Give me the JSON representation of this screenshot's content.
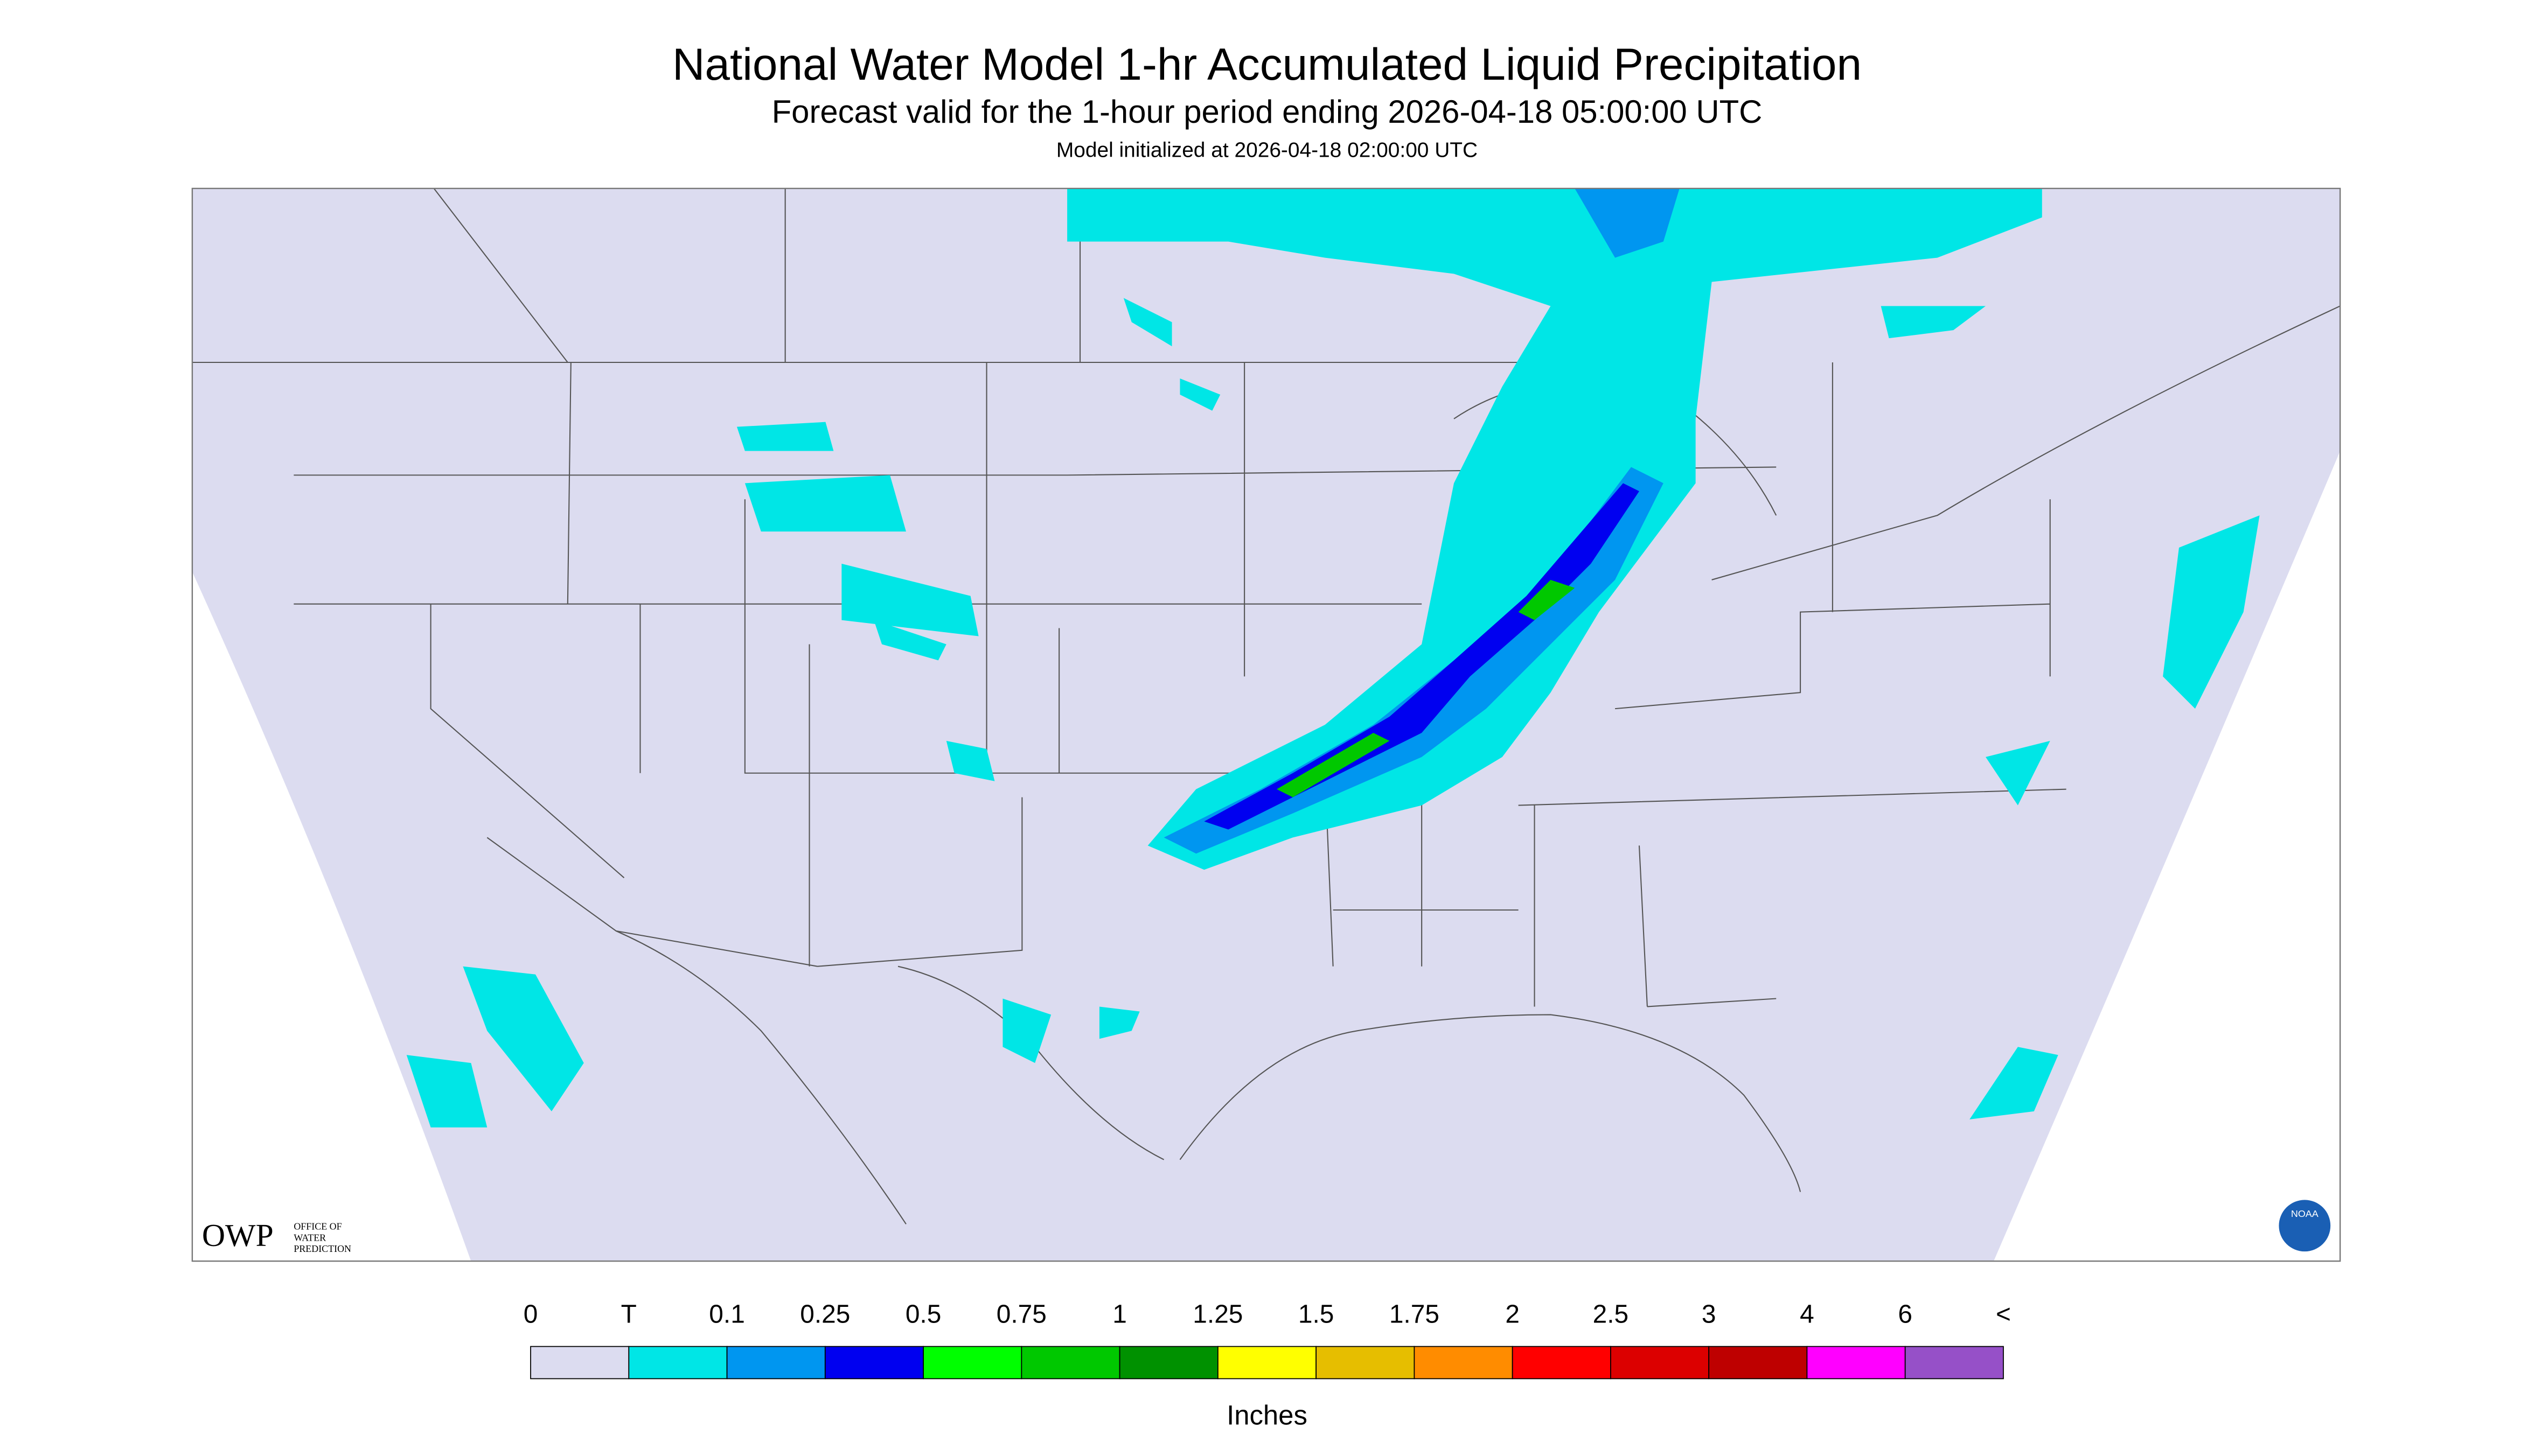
{
  "header": {
    "title": "National Water Model 1-hr Accumulated Liquid Precipitation",
    "subtitle": "Forecast valid for the 1-hour period ending 2026-04-18 05:00:00 UTC",
    "init": "Model initialized at 2026-04-18 02:00:00 UTC"
  },
  "logos": {
    "owp": "OWP",
    "owp_text": [
      "OFFICE OF",
      "WATER",
      "PREDICTION"
    ],
    "noaa": "NOAA"
  },
  "legend": {
    "labels": [
      "0",
      "T",
      "0.1",
      "0.25",
      "0.5",
      "0.75",
      "1",
      "1.25",
      "1.5",
      "1.75",
      "2",
      "2.5",
      "3",
      "4",
      "6",
      "<"
    ],
    "colors": [
      "#dcdcf0",
      "#00e6e6",
      "#0096f0",
      "#0000f0",
      "#00ff00",
      "#00c800",
      "#009100",
      "#ffff00",
      "#e6be00",
      "#ff8c00",
      "#ff0000",
      "#dc0000",
      "#be0000",
      "#ff00ff",
      "#9650c8"
    ],
    "units": "Inches"
  }
}
